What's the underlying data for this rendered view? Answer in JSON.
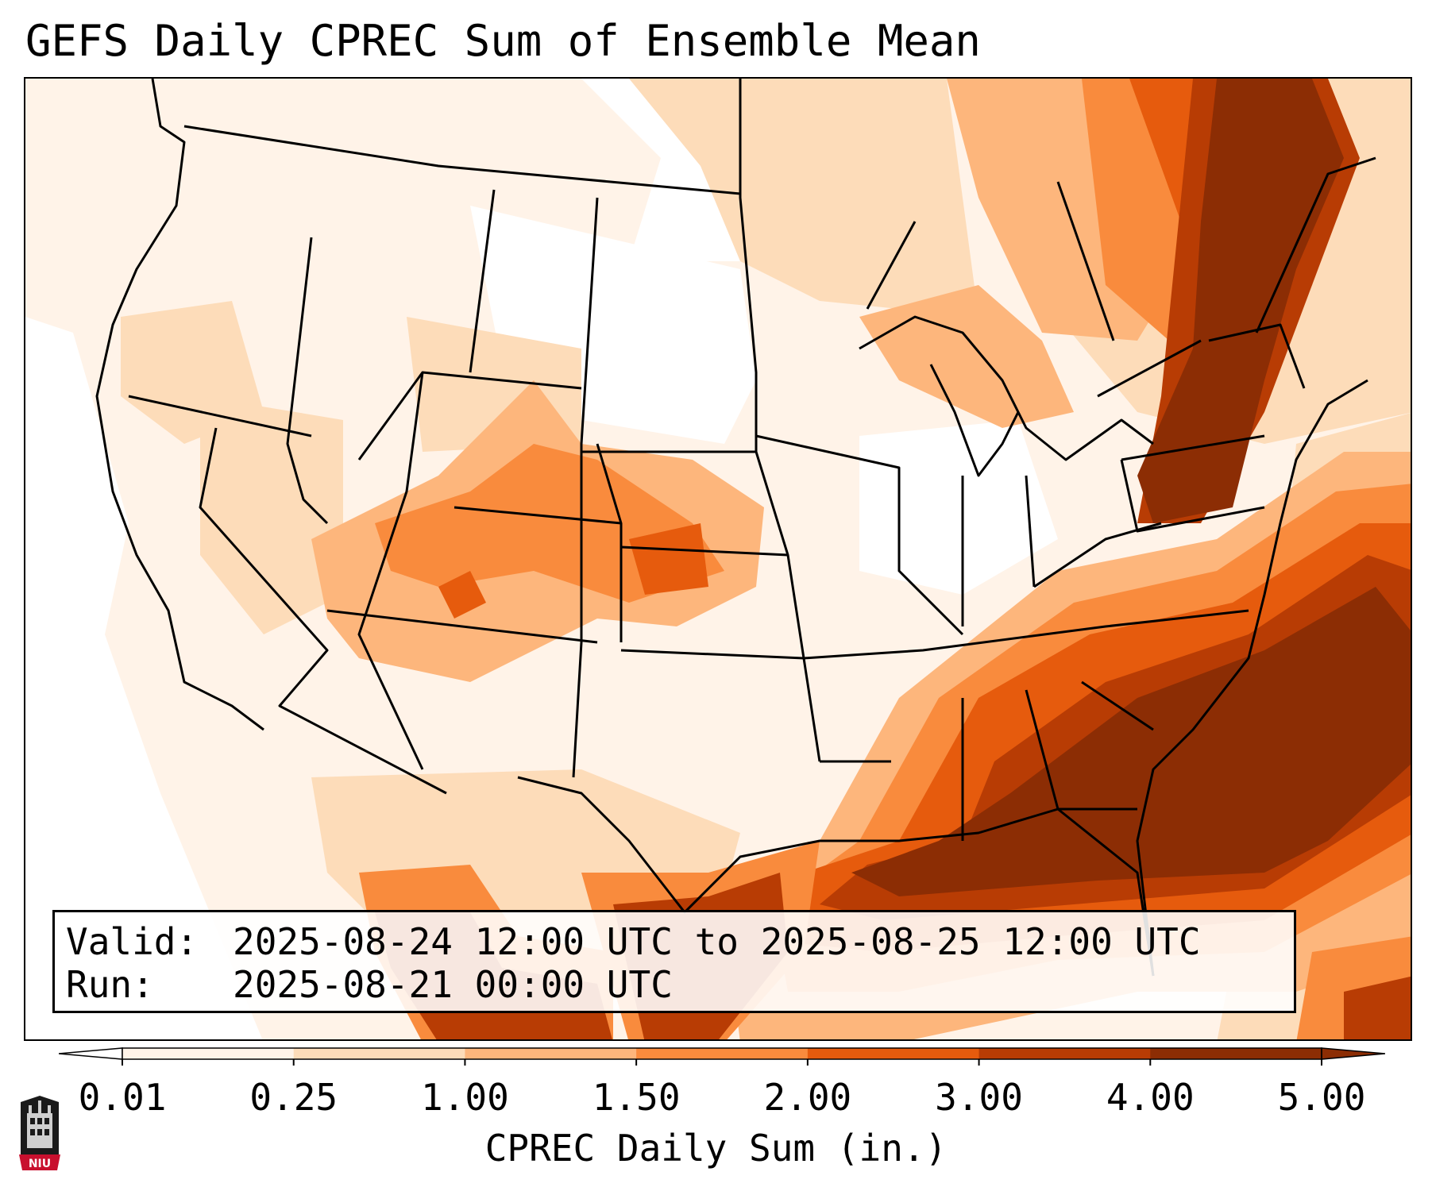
{
  "title": "GEFS Daily CPREC Sum of Ensemble Mean",
  "valid_label": "Valid:",
  "valid_value": "2025-08-24 12:00 UTC to 2025-08-25 12:00 UTC",
  "run_label": "Run:",
  "run_value": "2025-08-21 00:00 UTC",
  "colorbar": {
    "label": "CPREC Daily Sum (in.)",
    "ticks": [
      "0.01",
      "0.25",
      "1.00",
      "1.50",
      "2.00",
      "3.00",
      "4.00",
      "5.00"
    ],
    "colors": [
      "#fff3e8",
      "#fddcb9",
      "#fdb67c",
      "#f98b3d",
      "#e65b0d",
      "#b83c04",
      "#8c2d04"
    ],
    "extend": "both"
  },
  "logo_text": "NIU",
  "palette": {
    "c1": "#fff3e8",
    "c2": "#fddcb9",
    "c3": "#fdb67c",
    "c4": "#f98b3d",
    "c5": "#e65b0d",
    "c6": "#b83c04",
    "c7": "#8c2d04"
  }
}
